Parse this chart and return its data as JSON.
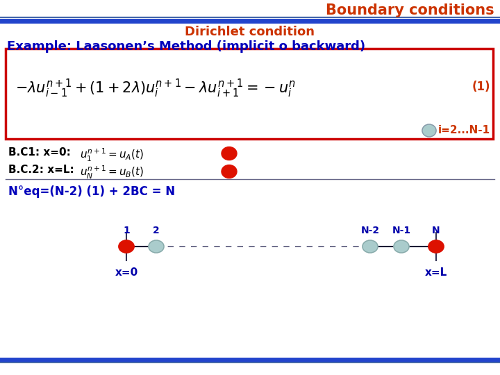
{
  "title": "Boundary conditions",
  "title_color": "#cc3300",
  "subtitle": "Dirichlet condition",
  "subtitle_color": "#cc3300",
  "example_text": "Example: Laasonen’s Method (implicit o backward)",
  "example_color": "#0000bb",
  "bc1_label": "B.C1: x=0:",
  "bc1_math": "$u_1^{n+1}=u_A(t)$",
  "bc2_label": "B.C.2: x=L:",
  "bc2_math": "$u_N^{n+1}=u_B(t)$",
  "bc_label_color": "#000000",
  "neq_text": "N°eq=(N-2) (1) + 2BC = N",
  "neq_color": "#0000bb",
  "label1": "1",
  "label2": "2",
  "label3": "N-2",
  "label4": "N-1",
  "label5": "N",
  "xlabel_left": "x=0",
  "xlabel_right": "x=L",
  "node_red": "#dd1100",
  "node_light": "#aacccc",
  "line_color": "#000033",
  "dashed_color": "#555577",
  "box_edge_color": "#cc0000",
  "header_line_color1": "#4466aa",
  "header_line_color2": "#2244cc",
  "i_text": "i=2...N-1",
  "i_color": "#cc3300",
  "annotation1": "(1)",
  "eq_str": "$-\\lambda u_{i-1}^{n+1} + (1+2\\lambda)u_i^{n+1} - \\lambda u_{i+1}^{n+1} = -u_i^n$"
}
